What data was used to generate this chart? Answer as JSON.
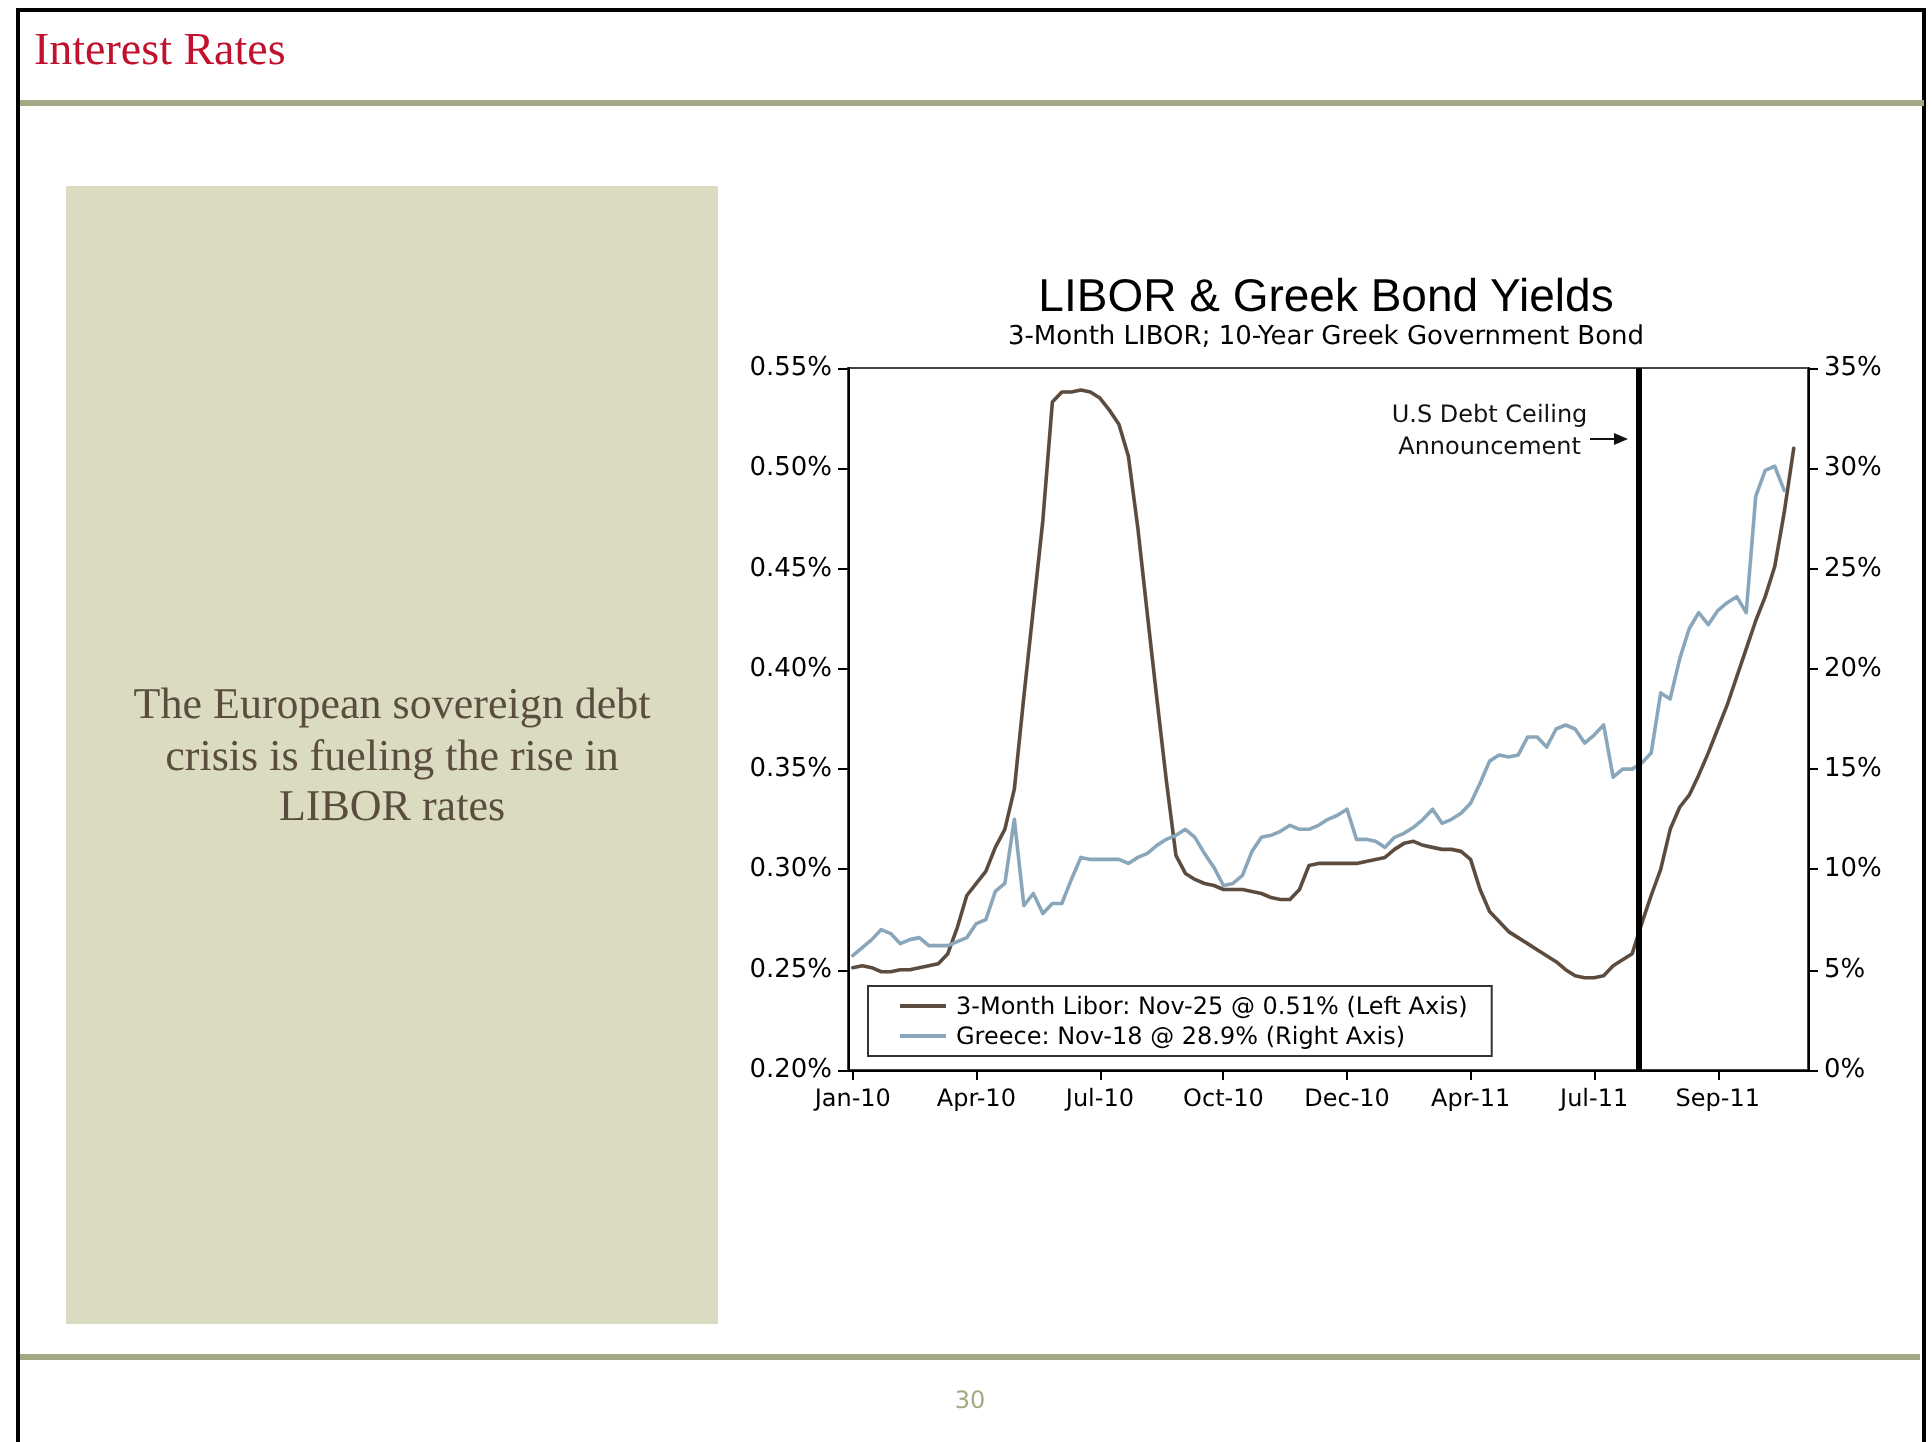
{
  "chart_data": {
    "type": "line",
    "title": "LIBOR & Greek Bond Yields",
    "subtitle": "3-Month LIBOR; 10-Year Greek Government Bond",
    "x": [
      "2010-01-01",
      "2010-01-08",
      "2010-01-15",
      "2010-01-22",
      "2010-01-29",
      "2010-02-05",
      "2010-02-12",
      "2010-02-19",
      "2010-02-26",
      "2010-03-05",
      "2010-03-12",
      "2010-03-19",
      "2010-03-26",
      "2010-04-02",
      "2010-04-09",
      "2010-04-16",
      "2010-04-23",
      "2010-04-30",
      "2010-05-07",
      "2010-05-14",
      "2010-05-21",
      "2010-05-28",
      "2010-06-04",
      "2010-06-11",
      "2010-06-18",
      "2010-06-25",
      "2010-07-02",
      "2010-07-09",
      "2010-07-16",
      "2010-07-23",
      "2010-07-30",
      "2010-08-06",
      "2010-08-13",
      "2010-08-20",
      "2010-08-27",
      "2010-09-03",
      "2010-09-10",
      "2010-09-17",
      "2010-09-24",
      "2010-10-01",
      "2010-10-08",
      "2010-10-15",
      "2010-10-22",
      "2010-10-29",
      "2010-11-05",
      "2010-11-12",
      "2010-11-19",
      "2010-11-26",
      "2010-12-03",
      "2010-12-10",
      "2010-12-17",
      "2010-12-24",
      "2010-12-31",
      "2011-01-07",
      "2011-01-14",
      "2011-01-21",
      "2011-01-28",
      "2011-02-04",
      "2011-02-11",
      "2011-02-18",
      "2011-02-25",
      "2011-03-04",
      "2011-03-11",
      "2011-03-18",
      "2011-03-25",
      "2011-04-01",
      "2011-04-08",
      "2011-04-15",
      "2011-04-22",
      "2011-04-29",
      "2011-05-06",
      "2011-05-13",
      "2011-05-20",
      "2011-05-27",
      "2011-06-03",
      "2011-06-10",
      "2011-06-17",
      "2011-06-24",
      "2011-07-01",
      "2011-07-08",
      "2011-07-15",
      "2011-07-22",
      "2011-07-29",
      "2011-08-05",
      "2011-08-12",
      "2011-08-19",
      "2011-08-26",
      "2011-09-02",
      "2011-09-09",
      "2011-09-16",
      "2011-09-23",
      "2011-09-30",
      "2011-10-07",
      "2011-10-14",
      "2011-10-21",
      "2011-10-28",
      "2011-11-04",
      "2011-11-11",
      "2011-11-18",
      "2011-11-25"
    ],
    "series": [
      {
        "name": "3-Month Libor: Nov-25 @ 0.51% (Left Axis)",
        "color": "#5c4c3f",
        "values": [
          0.251,
          0.252,
          0.251,
          0.249,
          0.249,
          0.25,
          0.25,
          0.251,
          0.252,
          0.253,
          0.258,
          0.271,
          0.287,
          0.293,
          0.299,
          0.311,
          0.32,
          0.34,
          0.386,
          0.43,
          0.474,
          0.533,
          0.538,
          0.538,
          0.539,
          0.538,
          0.535,
          0.529,
          0.522,
          0.506,
          0.47,
          0.427,
          0.385,
          0.344,
          0.307,
          0.298,
          0.295,
          0.293,
          0.292,
          0.29,
          0.29,
          0.29,
          0.289,
          0.288,
          0.286,
          0.285,
          0.285,
          0.29,
          0.302,
          0.303,
          0.303,
          0.303,
          0.303,
          0.303,
          0.304,
          0.305,
          0.306,
          0.31,
          0.313,
          0.314,
          0.312,
          0.311,
          0.31,
          0.31,
          0.309,
          0.305,
          0.29,
          0.279,
          0.274,
          0.269,
          0.266,
          0.263,
          0.26,
          0.257,
          0.254,
          0.25,
          0.247,
          0.246,
          0.246,
          0.247,
          0.252,
          0.255,
          0.258,
          0.273,
          0.287,
          0.3,
          0.32,
          0.331,
          0.337,
          0.347,
          0.358,
          0.37,
          0.382,
          0.396,
          0.41,
          0.424,
          0.436,
          0.451,
          0.478,
          0.51
        ]
      },
      {
        "name": "Greece: Nov-18 @ 28.9% (Right Axis)",
        "color": "#8aa6ba",
        "axis": "y2",
        "values": [
          5.7,
          6.1,
          6.5,
          7.0,
          6.8,
          6.3,
          6.5,
          6.6,
          6.2,
          6.2,
          6.2,
          6.4,
          6.6,
          7.3,
          7.5,
          8.9,
          9.3,
          12.5,
          8.2,
          8.8,
          7.8,
          8.3,
          8.3,
          9.5,
          10.6,
          10.5,
          10.5,
          10.5,
          10.5,
          10.3,
          10.6,
          10.8,
          11.2,
          11.5,
          11.7,
          12.0,
          11.6,
          10.8,
          10.1,
          9.2,
          9.3,
          9.7,
          10.9,
          11.6,
          11.7,
          11.9,
          12.2,
          12.0,
          12.0,
          12.2,
          12.5,
          12.7,
          13.0,
          11.5,
          11.5,
          11.4,
          11.1,
          11.6,
          11.8,
          12.1,
          12.5,
          13.0,
          12.3,
          12.5,
          12.8,
          13.3,
          14.3,
          15.4,
          15.7,
          15.6,
          15.7,
          16.6,
          16.6,
          16.1,
          17.0,
          17.2,
          17.0,
          16.3,
          16.7,
          17.2,
          14.6,
          15.0,
          15.0,
          15.3,
          15.8,
          18.8,
          18.5,
          20.5,
          22.0,
          22.8,
          22.2,
          22.9,
          23.3,
          23.6,
          22.8,
          28.6,
          29.9,
          30.1,
          28.9,
          null
        ]
      }
    ],
    "xlim": [
      "2009-12-28T12:00",
      "2011-12-05T12:00"
    ],
    "xticks": [
      {
        "value": "2010-01-01",
        "label": "Jan-10"
      },
      {
        "value": "2010-04-02",
        "label": "Apr-10"
      },
      {
        "value": "2010-07-02",
        "label": "Jul-10"
      },
      {
        "value": "2010-10-01",
        "label": "Oct-10"
      },
      {
        "value": "2010-12-31",
        "label": "Dec-10"
      },
      {
        "value": "2011-04-01",
        "label": "Apr-11"
      },
      {
        "value": "2011-07-01",
        "label": "Jul-11"
      },
      {
        "value": "2011-09-30",
        "label": "Sep-11"
      }
    ],
    "ylim": [
      0.2,
      0.55
    ],
    "yticks": [
      {
        "value": 0.2,
        "label": "0.20%"
      },
      {
        "value": 0.25,
        "label": "0.25%"
      },
      {
        "value": 0.3,
        "label": "0.30%"
      },
      {
        "value": 0.35,
        "label": "0.35%"
      },
      {
        "value": 0.4,
        "label": "0.40%"
      },
      {
        "value": 0.45,
        "label": "0.45%"
      },
      {
        "value": 0.5,
        "label": "0.50%"
      },
      {
        "value": 0.55,
        "label": "0.55%"
      }
    ],
    "y2lim": [
      0,
      35
    ],
    "y2ticks": [
      {
        "value": 0,
        "label": "0%"
      },
      {
        "value": 5,
        "label": "5%"
      },
      {
        "value": 10,
        "label": "10%"
      },
      {
        "value": 15,
        "label": "15%"
      },
      {
        "value": 20,
        "label": "20%"
      },
      {
        "value": 25,
        "label": "25%"
      },
      {
        "value": 30,
        "label": "30%"
      },
      {
        "value": 35,
        "label": "35%"
      }
    ],
    "ref_lines": [
      {
        "axis": "x",
        "value": "2011-08-02",
        "label": "U.S Debt Ceiling Announcement",
        "color": "#000000"
      }
    ],
    "legend": "bottom left",
    "annotations": [
      "Interest Rates",
      "The European sovereign debt crisis is fueling the rise in LIBOR rates",
      "30"
    ]
  }
}
